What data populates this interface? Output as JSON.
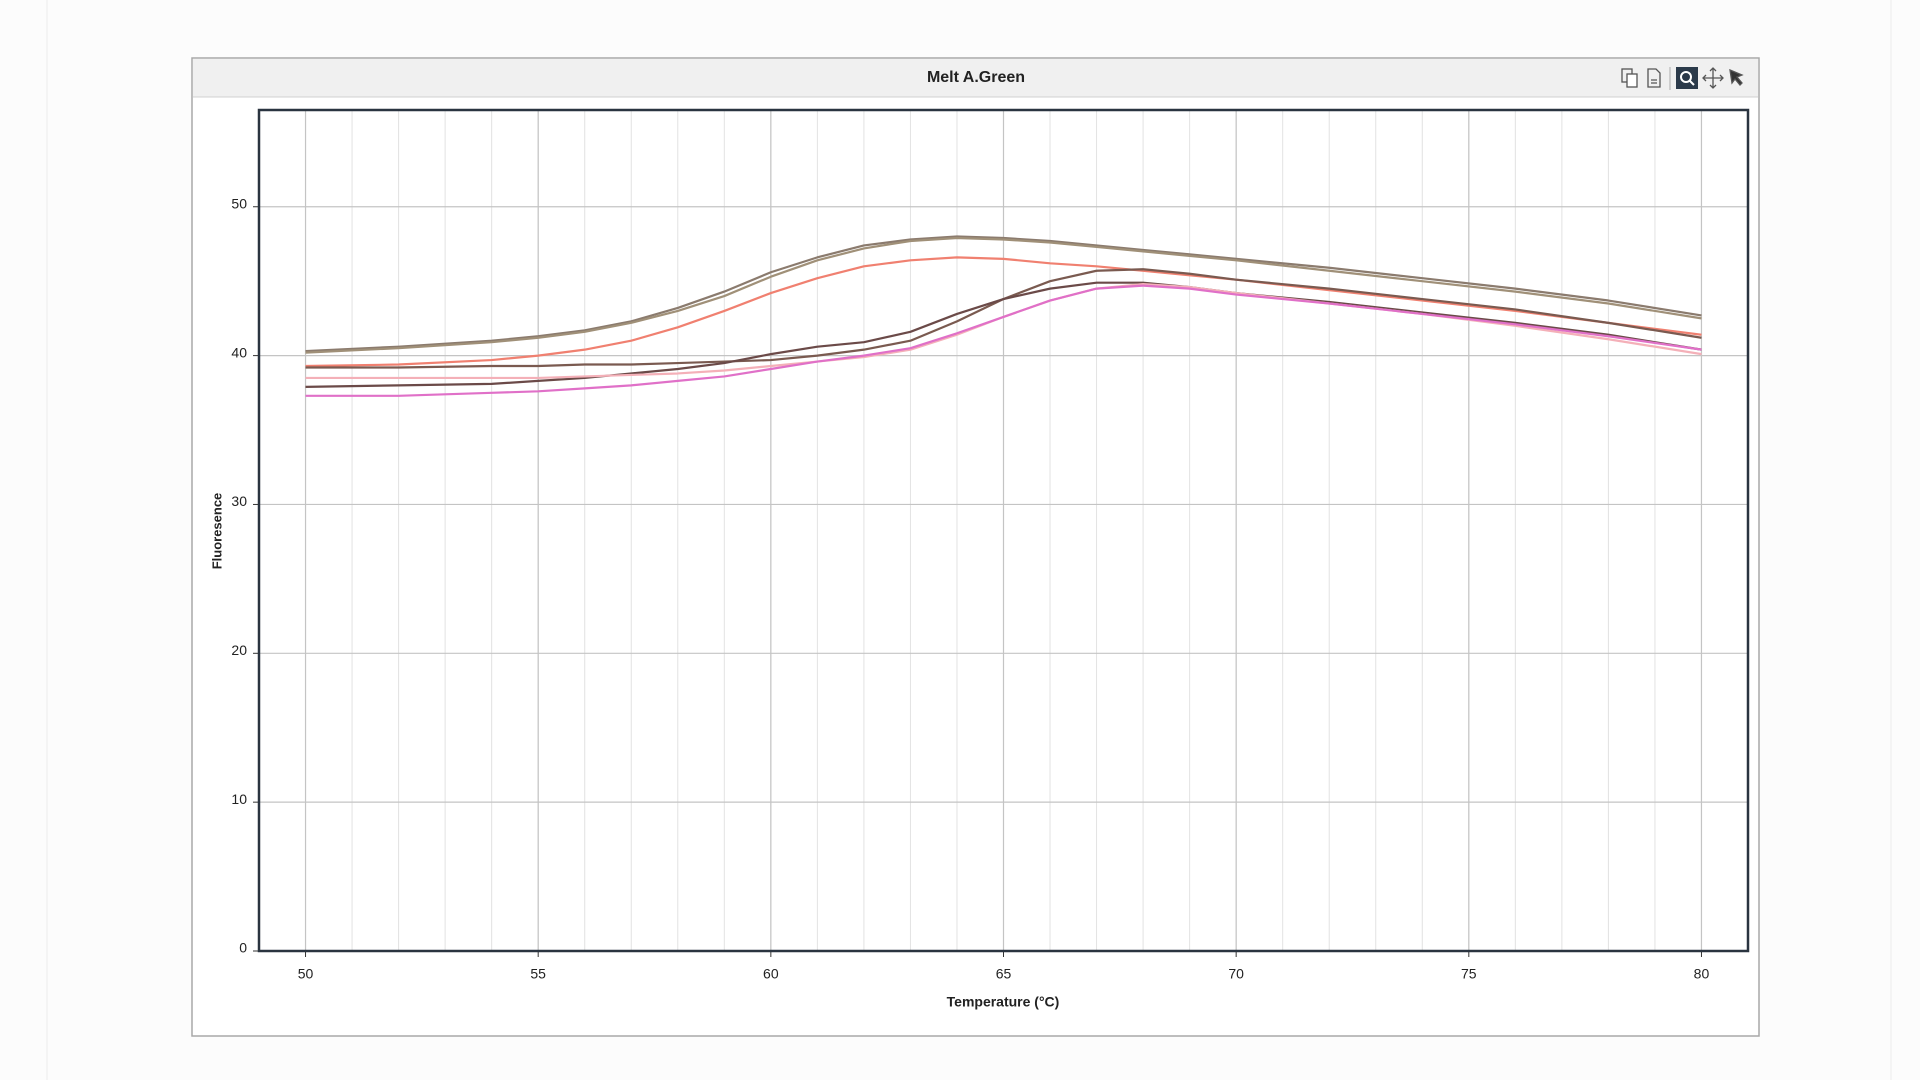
{
  "chart_data": {
    "type": "line",
    "title": "Melt A.Green",
    "xlabel": "Temperature (°C)",
    "ylabel": "Fluoresence",
    "x": [
      50,
      52,
      54,
      55,
      56,
      57,
      58,
      59,
      60,
      61,
      62,
      63,
      64,
      65,
      66,
      67,
      68,
      69,
      70,
      72,
      74,
      76,
      78,
      80
    ],
    "series": [
      {
        "color": "#8b7b6e",
        "values": [
          40.3,
          40.6,
          41.0,
          41.3,
          41.7,
          42.3,
          43.2,
          44.3,
          45.6,
          46.6,
          47.4,
          47.8,
          48.0,
          47.9,
          47.7,
          47.4,
          47.1,
          46.8,
          46.5,
          45.9,
          45.2,
          44.5,
          43.7,
          42.7
        ]
      },
      {
        "color": "#a09078",
        "values": [
          40.2,
          40.5,
          40.9,
          41.2,
          41.6,
          42.2,
          43.0,
          44.0,
          45.3,
          46.4,
          47.2,
          47.7,
          47.9,
          47.8,
          47.6,
          47.3,
          47.0,
          46.7,
          46.4,
          45.7,
          45.0,
          44.3,
          43.5,
          42.5
        ]
      },
      {
        "color": "#f08070",
        "values": [
          39.3,
          39.4,
          39.7,
          40.0,
          40.4,
          41.0,
          41.9,
          43.0,
          44.2,
          45.2,
          46.0,
          46.4,
          46.6,
          46.5,
          46.2,
          46.0,
          45.7,
          45.4,
          45.1,
          44.4,
          43.7,
          43.0,
          42.2,
          41.4
        ]
      },
      {
        "color": "#7a5a50",
        "values": [
          39.2,
          39.2,
          39.3,
          39.3,
          39.4,
          39.4,
          39.5,
          39.6,
          39.7,
          40.0,
          40.4,
          41.0,
          42.3,
          43.8,
          45.0,
          45.7,
          45.8,
          45.5,
          45.1,
          44.5,
          43.8,
          43.1,
          42.2,
          41.2
        ]
      },
      {
        "color": "#6b4a48",
        "values": [
          37.9,
          38.0,
          38.1,
          38.3,
          38.5,
          38.8,
          39.1,
          39.5,
          40.1,
          40.6,
          40.9,
          41.6,
          42.8,
          43.8,
          44.5,
          44.9,
          44.9,
          44.6,
          44.2,
          43.6,
          42.9,
          42.2,
          41.4,
          40.4
        ]
      },
      {
        "color": "#f4b0b8",
        "values": [
          38.5,
          38.5,
          38.5,
          38.5,
          38.6,
          38.7,
          38.8,
          39.0,
          39.3,
          39.6,
          39.9,
          40.4,
          41.4,
          42.6,
          43.7,
          44.5,
          44.8,
          44.6,
          44.2,
          43.5,
          42.8,
          42.0,
          41.1,
          40.1
        ]
      },
      {
        "color": "#e070c8",
        "values": [
          37.3,
          37.3,
          37.5,
          37.6,
          37.8,
          38.0,
          38.3,
          38.6,
          39.1,
          39.6,
          40.0,
          40.5,
          41.5,
          42.6,
          43.7,
          44.5,
          44.7,
          44.5,
          44.1,
          43.5,
          42.8,
          42.1,
          41.3,
          40.4
        ]
      }
    ],
    "xlim": [
      49,
      81
    ],
    "xticks": [
      50,
      55,
      60,
      65,
      70,
      75,
      80
    ],
    "xminorticks": [
      49,
      50,
      51,
      52,
      53,
      54,
      55,
      56,
      57,
      58,
      59,
      60,
      61,
      62,
      63,
      64,
      65,
      66,
      67,
      68,
      69,
      70,
      71,
      72,
      73,
      74,
      75,
      76,
      77,
      78,
      79,
      80,
      81
    ],
    "ylim": [
      0,
      56.5
    ],
    "yticks": [
      0,
      10,
      20,
      30,
      40,
      50
    ],
    "grid": true
  }
}
